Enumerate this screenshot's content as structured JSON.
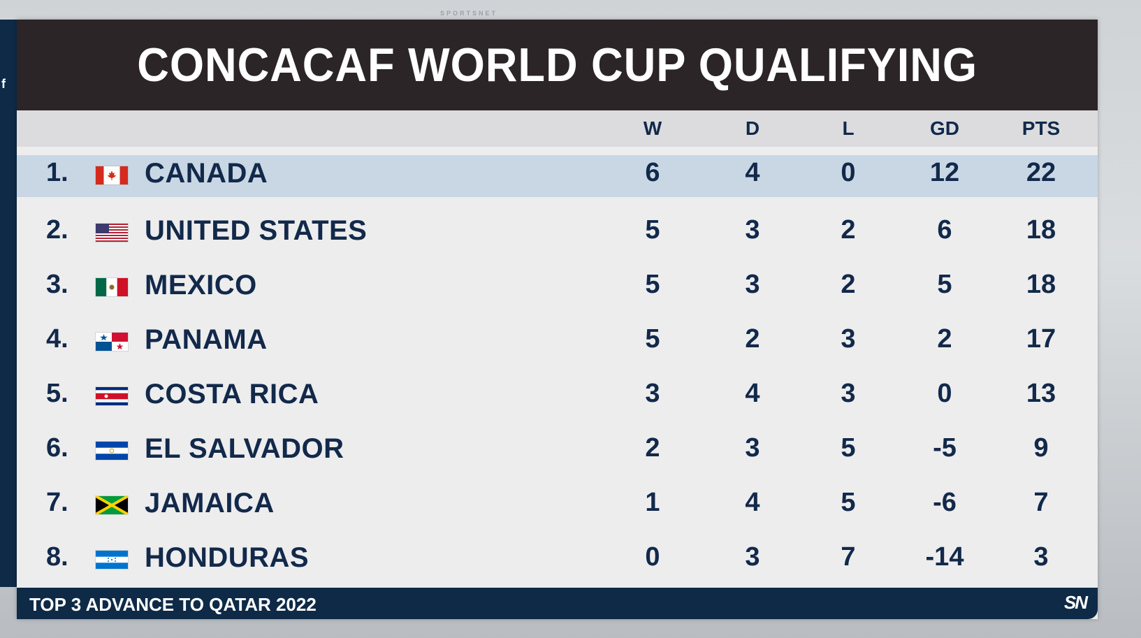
{
  "watermark": "SPORTSNET",
  "left_strip_letter": "f",
  "title": "CONCACAF WORLD CUP QUALIFYING",
  "columns": {
    "w": "W",
    "d": "D",
    "l": "L",
    "gd": "GD",
    "pts": "PTS"
  },
  "teams": [
    {
      "rank": "1.",
      "name": "CANADA",
      "flag": "canada-flag-icon",
      "w": "6",
      "d": "4",
      "l": "0",
      "gd": "12",
      "pts": "22",
      "highlighted": true
    },
    {
      "rank": "2.",
      "name": "UNITED STATES",
      "flag": "usa-flag-icon",
      "w": "5",
      "d": "3",
      "l": "2",
      "gd": "6",
      "pts": "18"
    },
    {
      "rank": "3.",
      "name": "MEXICO",
      "flag": "mexico-flag-icon",
      "w": "5",
      "d": "3",
      "l": "2",
      "gd": "5",
      "pts": "18"
    },
    {
      "rank": "4.",
      "name": "PANAMA",
      "flag": "panama-flag-icon",
      "w": "5",
      "d": "2",
      "l": "3",
      "gd": "2",
      "pts": "17"
    },
    {
      "rank": "5.",
      "name": "COSTA RICA",
      "flag": "costa-rica-flag-icon",
      "w": "3",
      "d": "4",
      "l": "3",
      "gd": "0",
      "pts": "13"
    },
    {
      "rank": "6.",
      "name": "EL SALVADOR",
      "flag": "el-salvador-flag-icon",
      "w": "2",
      "d": "3",
      "l": "5",
      "gd": "-5",
      "pts": "9"
    },
    {
      "rank": "7.",
      "name": "JAMAICA",
      "flag": "jamaica-flag-icon",
      "w": "1",
      "d": "4",
      "l": "5",
      "gd": "-6",
      "pts": "7"
    },
    {
      "rank": "8.",
      "name": "HONDURAS",
      "flag": "honduras-flag-icon",
      "w": "0",
      "d": "3",
      "l": "7",
      "gd": "-14",
      "pts": "3"
    }
  ],
  "footer": "TOP 3 ADVANCE TO QATAR 2022",
  "logo": "SN",
  "colors": {
    "navy": "#12294a",
    "title_bg": "#2b2527",
    "highlight": "#c9d7e5",
    "footer_bg": "#0e2a47"
  }
}
